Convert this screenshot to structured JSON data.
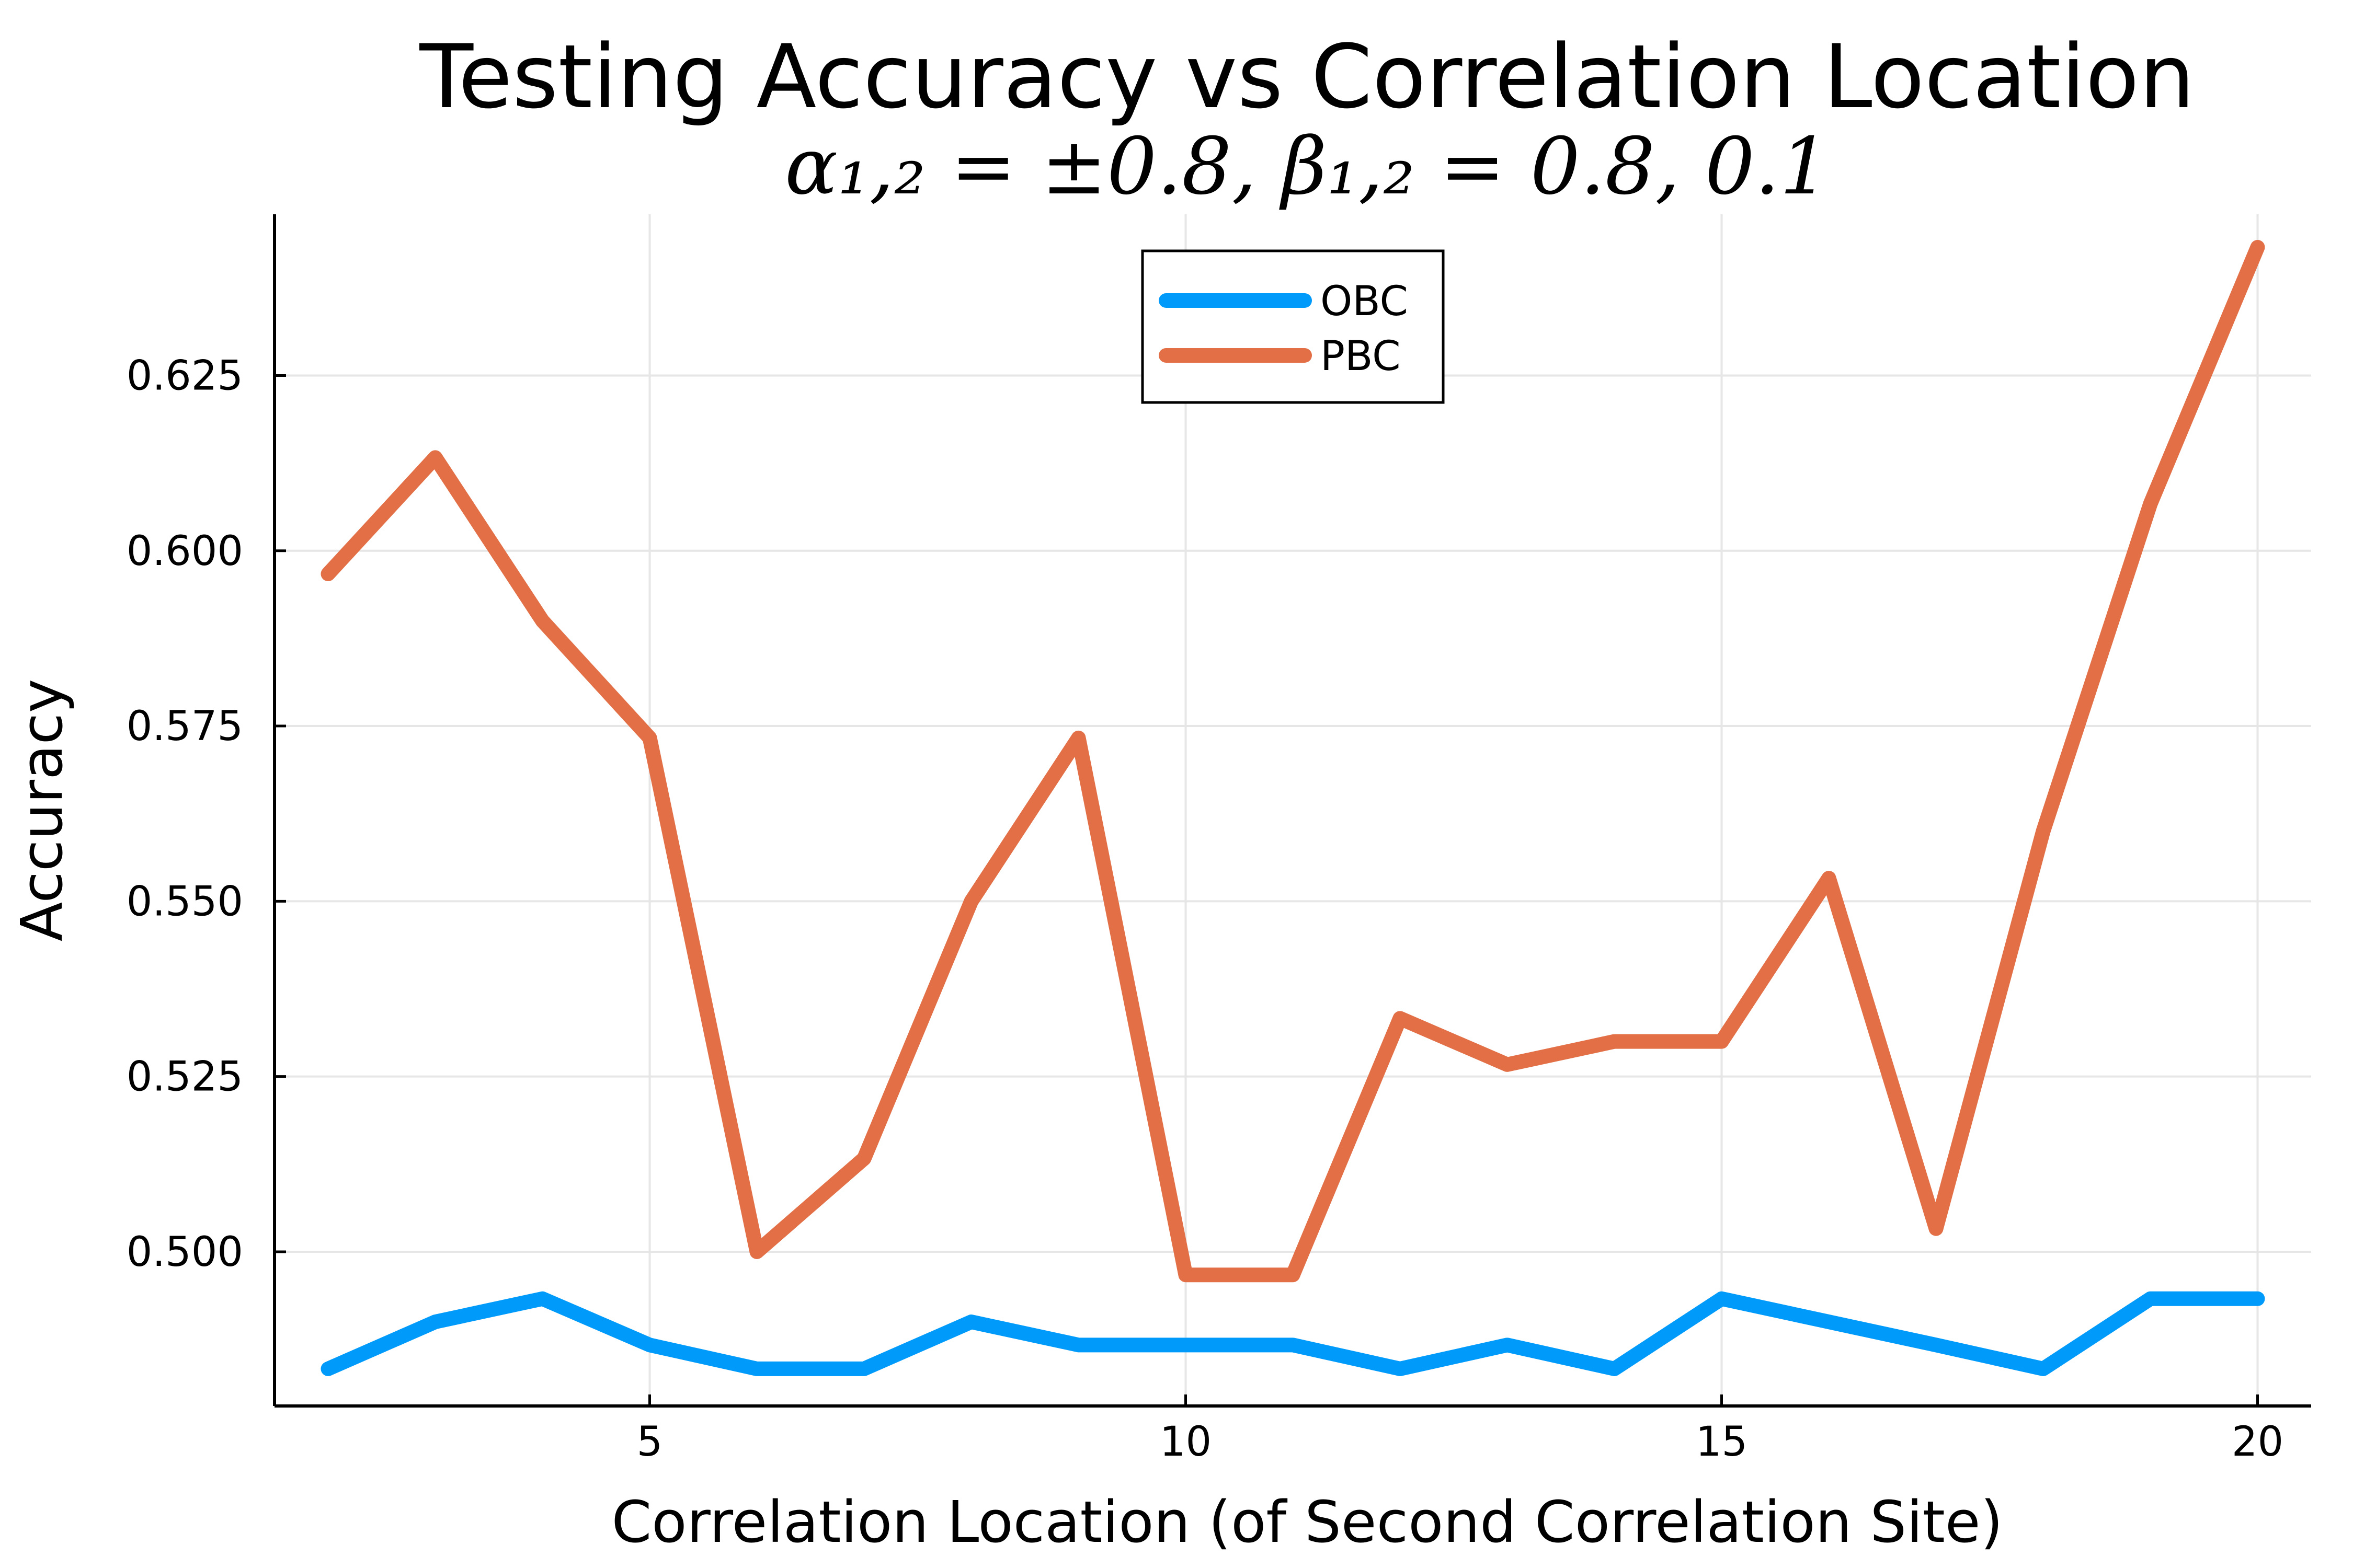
{
  "chart_data": {
    "type": "line",
    "title": "Testing Accuracy vs Correlation Location",
    "subtitle": "α₁,₂ = ±0.8, β₁,₂ = 0.8, 0.1",
    "xlabel": "Correlation Location (of Second Correlation Site)",
    "ylabel": "Accuracy",
    "xlim": [
      1.5,
      20.5
    ],
    "ylim": [
      0.478,
      0.648
    ],
    "xticks": [
      5,
      10,
      15,
      20
    ],
    "yticks": [
      0.5,
      0.525,
      0.55,
      0.575,
      0.6,
      0.625
    ],
    "xtick_labels": [
      "5",
      "10",
      "15",
      "20"
    ],
    "ytick_labels": [
      "0.500",
      "0.525",
      "0.550",
      "0.575",
      "0.600",
      "0.625"
    ],
    "grid": true,
    "legend_position": "top-center",
    "x": [
      2,
      3,
      4,
      5,
      6,
      7,
      8,
      9,
      10,
      11,
      12,
      13,
      14,
      15,
      16,
      17,
      18,
      19,
      20
    ],
    "series": [
      {
        "name": "OBC",
        "color": "#009AFA",
        "values": [
          0.4833,
          0.49,
          0.4933,
          0.4867,
          0.4833,
          0.4833,
          0.49,
          0.4867,
          0.4867,
          0.4867,
          0.4833,
          0.4867,
          0.4833,
          0.4933,
          0.49,
          0.4867,
          0.4833,
          0.4933,
          0.4933
        ]
      },
      {
        "name": "PBC",
        "color": "#E26F46",
        "values": [
          0.5967,
          0.6133,
          0.59,
          0.5733,
          0.5,
          0.5133,
          0.55,
          0.5733,
          0.4967,
          0.4967,
          0.5333,
          0.5267,
          0.53,
          0.53,
          0.5533,
          0.5033,
          0.56,
          0.6067,
          0.6433
        ]
      }
    ]
  }
}
